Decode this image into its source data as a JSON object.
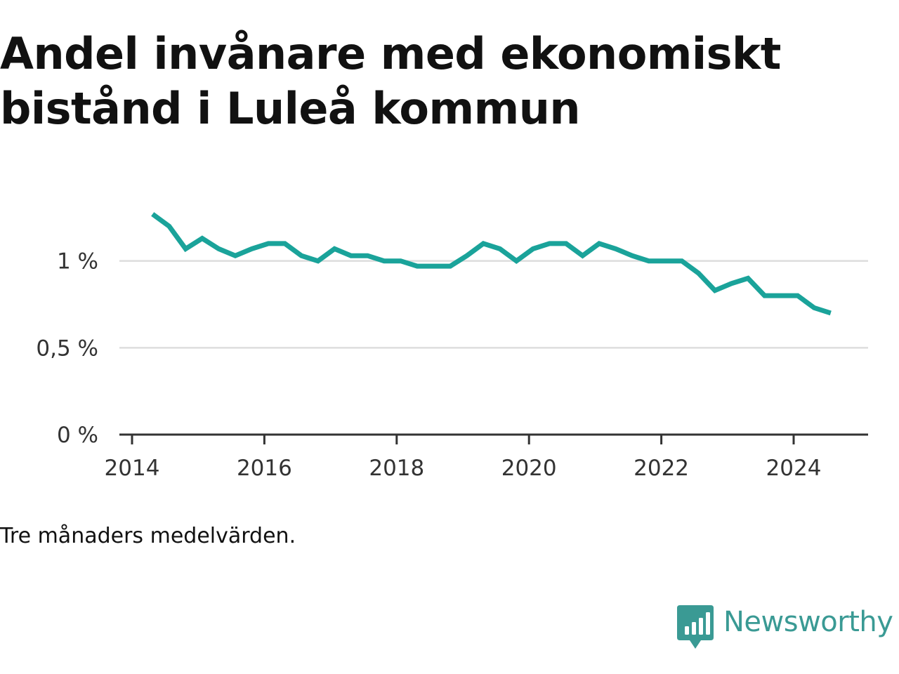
{
  "chart_data": {
    "type": "line",
    "title": "Andel invånare med ekonomiskt bistånd i Luleå kommun",
    "footnote": "Tre månaders medelvärden.",
    "brand": "Newsworthy",
    "line_color": "#1aa39a",
    "grid": true,
    "ylim": [
      0,
      1.5
    ],
    "xlim": [
      2013.95,
      2025.6
    ],
    "y_ticks": [
      {
        "value": 0,
        "label": "0 %"
      },
      {
        "value": 0.5,
        "label": "0,5 %"
      },
      {
        "value": 1,
        "label": "1 %"
      }
    ],
    "x_ticks": [
      {
        "value": 2014,
        "label": "2014"
      },
      {
        "value": 2016,
        "label": "2016"
      },
      {
        "value": 2018,
        "label": "2018"
      },
      {
        "value": 2020,
        "label": "2020"
      },
      {
        "value": 2022,
        "label": "2022"
      },
      {
        "value": 2024,
        "label": "2024"
      }
    ],
    "x": [
      2014.31,
      2014.56,
      2014.81,
      2015.06,
      2015.31,
      2015.56,
      2015.81,
      2016.06,
      2016.31,
      2016.56,
      2016.81,
      2017.06,
      2017.31,
      2017.56,
      2017.81,
      2018.06,
      2018.31,
      2018.56,
      2018.81,
      2019.06,
      2019.31,
      2019.56,
      2019.81,
      2020.06,
      2020.31,
      2020.56,
      2020.81,
      2021.06,
      2021.31,
      2021.56,
      2021.81,
      2022.06,
      2022.31,
      2022.56,
      2022.81,
      2023.06,
      2023.31,
      2023.56,
      2023.81,
      2024.06,
      2024.31,
      2024.56
    ],
    "values": [
      1.27,
      1.2,
      1.07,
      1.13,
      1.07,
      1.03,
      1.07,
      1.1,
      1.1,
      1.03,
      1.0,
      1.07,
      1.03,
      1.03,
      1.0,
      1.0,
      0.97,
      0.97,
      0.97,
      1.03,
      1.1,
      1.07,
      1.0,
      1.07,
      1.1,
      1.1,
      1.03,
      1.1,
      1.07,
      1.03,
      1.0,
      1.0,
      1.0,
      0.93,
      0.83,
      0.87,
      0.9,
      0.8,
      0.8,
      0.8,
      0.73,
      0.7
    ]
  }
}
